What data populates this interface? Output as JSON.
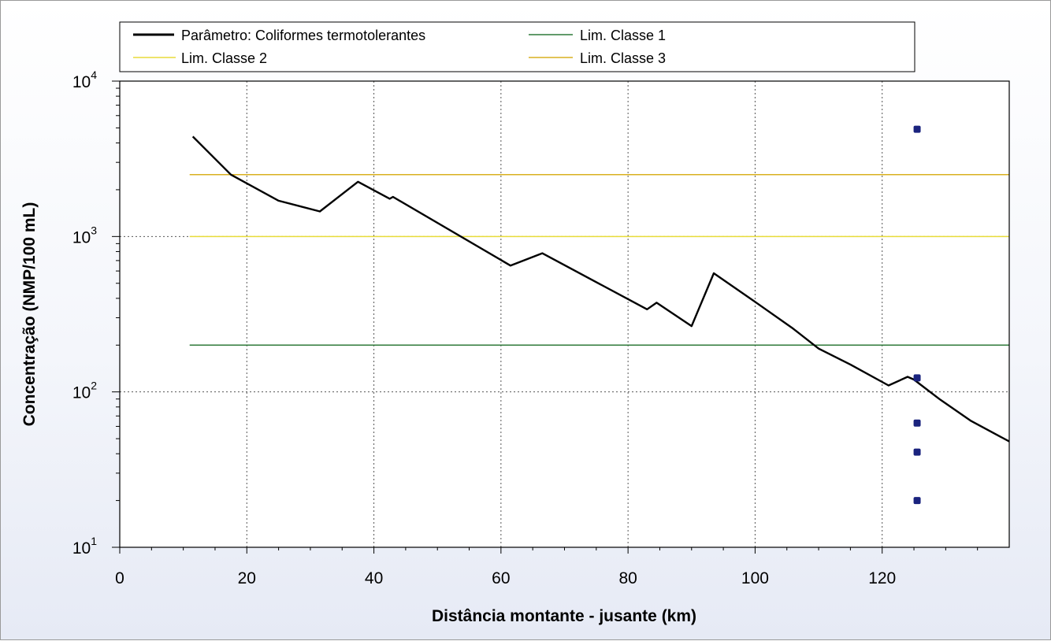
{
  "chart_data": {
    "type": "line",
    "xlabel": "Distância montante - jusante (km)",
    "ylabel": "Concentração (NMP/100 mL)",
    "xlim": [
      0,
      140
    ],
    "ylim": [
      10,
      10000
    ],
    "yscale": "log",
    "x_ticks": [
      "0",
      "20",
      "40",
      "60",
      "80",
      "100",
      "120"
    ],
    "x_tick_values": [
      0,
      20,
      40,
      60,
      80,
      100,
      120
    ],
    "y_ticks": [
      {
        "base": "10",
        "exp": "1",
        "value": 10
      },
      {
        "base": "10",
        "exp": "2",
        "value": 100
      },
      {
        "base": "10",
        "exp": "3",
        "value": 1000
      },
      {
        "base": "10",
        "exp": "4",
        "value": 10000
      }
    ],
    "grid": true,
    "legend_position": "top",
    "series": [
      {
        "name": "Parâmetro: Coliformes termotolerantes",
        "kind": "line",
        "color": "#000000",
        "x": [
          11.5,
          17.5,
          25,
          31.5,
          37.5,
          42.5,
          43,
          61.5,
          66.5,
          83,
          84.5,
          90,
          93.5,
          100,
          106,
          110,
          115,
          121,
          124,
          125,
          129,
          134,
          140
        ],
        "y": [
          4400,
          2500,
          1700,
          1450,
          2250,
          1750,
          1800,
          650,
          780,
          340,
          375,
          265,
          580,
          380,
          255,
          190,
          150,
          110,
          125,
          120,
          90,
          65,
          48
        ]
      },
      {
        "name": "Lim. Classe 1",
        "kind": "hline",
        "color": "#2f7a3a",
        "x": [
          11,
          140
        ],
        "y": [
          200,
          200
        ]
      },
      {
        "name": "Lim. Classe 2",
        "kind": "hline",
        "color": "#e8dc3a",
        "x": [
          11,
          140
        ],
        "y": [
          1000,
          1000
        ]
      },
      {
        "name": "Lim. Classe 3",
        "kind": "hline",
        "color": "#d9b020",
        "x": [
          11,
          140
        ],
        "y": [
          2500,
          2500
        ]
      },
      {
        "kind": "scatter",
        "color": "#1a237e",
        "x": [
          125.5,
          125.5,
          125.5,
          125.5,
          125.5
        ],
        "y": [
          4900,
          123,
          63,
          41,
          20
        ]
      }
    ]
  }
}
